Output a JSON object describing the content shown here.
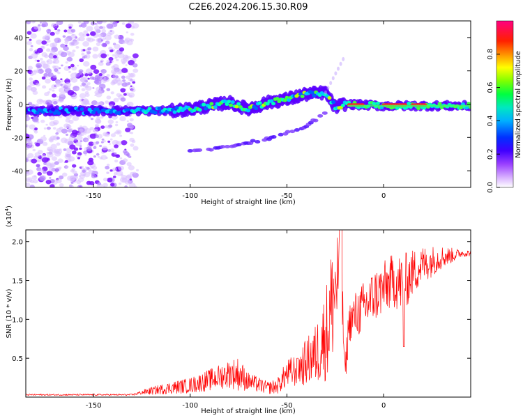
{
  "title": "C2E6.2024.206.15.30.R09",
  "chart_data": [
    {
      "type": "heatmap",
      "xlabel": "Height of straight line (km)",
      "ylabel": "Frequency (Hz)",
      "xlim": [
        -185,
        45
      ],
      "ylim": [
        -50,
        50
      ],
      "xticks": [
        -150,
        -100,
        -50,
        0
      ],
      "yticks": [
        -40,
        -20,
        0,
        20,
        40
      ],
      "noise_region_x": [
        -185,
        -128
      ],
      "main_trace": [
        {
          "x": -185,
          "y": -4
        },
        {
          "x": -170,
          "y": -4
        },
        {
          "x": -150,
          "y": -4
        },
        {
          "x": -130,
          "y": -4
        },
        {
          "x": -110,
          "y": -4
        },
        {
          "x": -100,
          "y": -3
        },
        {
          "x": -90,
          "y": -1
        },
        {
          "x": -80,
          "y": 1
        },
        {
          "x": -70,
          "y": -3
        },
        {
          "x": -60,
          "y": 1
        },
        {
          "x": -50,
          "y": 3
        },
        {
          "x": -40,
          "y": 6
        },
        {
          "x": -30,
          "y": 7
        },
        {
          "x": -25,
          "y": -2
        },
        {
          "x": -20,
          "y": 0
        },
        {
          "x": 0,
          "y": -1
        },
        {
          "x": 20,
          "y": -1
        },
        {
          "x": 45,
          "y": -1
        }
      ],
      "secondary_trace": [
        {
          "x": -100,
          "y": -28
        },
        {
          "x": -90,
          "y": -27
        },
        {
          "x": -80,
          "y": -25
        },
        {
          "x": -70,
          "y": -23
        },
        {
          "x": -60,
          "y": -21
        },
        {
          "x": -50,
          "y": -17
        },
        {
          "x": -40,
          "y": -13
        },
        {
          "x": -30,
          "y": -5
        }
      ],
      "colorbar": {
        "label": "Normalized spectral amplitude",
        "range": [
          0,
          1
        ],
        "ticks": [
          0.0,
          0.2,
          0.4,
          0.6,
          0.8
        ],
        "colors": [
          "#ffffff",
          "#c080ff",
          "#7a00ff",
          "#0000ff",
          "#00c8ff",
          "#00ff00",
          "#ffff00",
          "#ff8000",
          "#ff0000",
          "#ff0080"
        ]
      }
    },
    {
      "type": "line",
      "xlabel": "Height of straight line (km)",
      "ylabel": "SNR (10 * v/v)",
      "y_multiplier": "(x10",
      "y_multiplier_exp": "4",
      "y_multiplier_close": ")",
      "xlim": [
        -185,
        45
      ],
      "ylim": [
        0,
        2.15
      ],
      "xticks": [
        -150,
        -100,
        -50,
        0
      ],
      "yticks": [
        0.5,
        1.0,
        1.5,
        2.0
      ],
      "color": "#ff0000",
      "envelope": {
        "x": [
          -185,
          -130,
          -125,
          -110,
          -100,
          -90,
          -80,
          -75,
          -70,
          -60,
          -55,
          -50,
          -45,
          -40,
          -35,
          -30,
          -28,
          -26,
          -24,
          -22,
          -20,
          -19,
          -18,
          -15,
          -10,
          -5,
          0,
          5,
          10,
          15,
          20,
          25,
          30,
          35,
          40,
          45
        ],
        "y": [
          0.03,
          0.03,
          0.06,
          0.12,
          0.15,
          0.22,
          0.3,
          0.3,
          0.2,
          0.12,
          0.14,
          0.3,
          0.35,
          0.45,
          0.55,
          0.8,
          1.0,
          1.3,
          1.5,
          1.6,
          0.3,
          0.6,
          0.95,
          1.05,
          1.15,
          1.3,
          1.4,
          1.5,
          1.45,
          1.6,
          1.7,
          1.75,
          1.8,
          1.82,
          1.85,
          1.85
        ]
      },
      "noise_amplitude": {
        "x": [
          -185,
          -130,
          -120,
          -110,
          -100,
          -90,
          -80,
          -75,
          -70,
          -60,
          -55,
          -50,
          -45,
          -40,
          -35,
          -30,
          -28,
          -26,
          -24,
          -22,
          -20,
          -19,
          -18,
          -15,
          -10,
          -5,
          0,
          5,
          10,
          15,
          20,
          25,
          30,
          35,
          40,
          45
        ],
        "y": [
          0.01,
          0.01,
          0.05,
          0.08,
          0.1,
          0.14,
          0.18,
          0.22,
          0.12,
          0.08,
          0.1,
          0.18,
          0.22,
          0.3,
          0.4,
          0.6,
          0.8,
          0.8,
          0.7,
          0.6,
          0.15,
          0.25,
          0.25,
          0.3,
          0.35,
          0.35,
          0.35,
          0.35,
          0.4,
          0.3,
          0.25,
          0.2,
          0.15,
          0.1,
          0.05,
          0.04
        ]
      }
    }
  ]
}
